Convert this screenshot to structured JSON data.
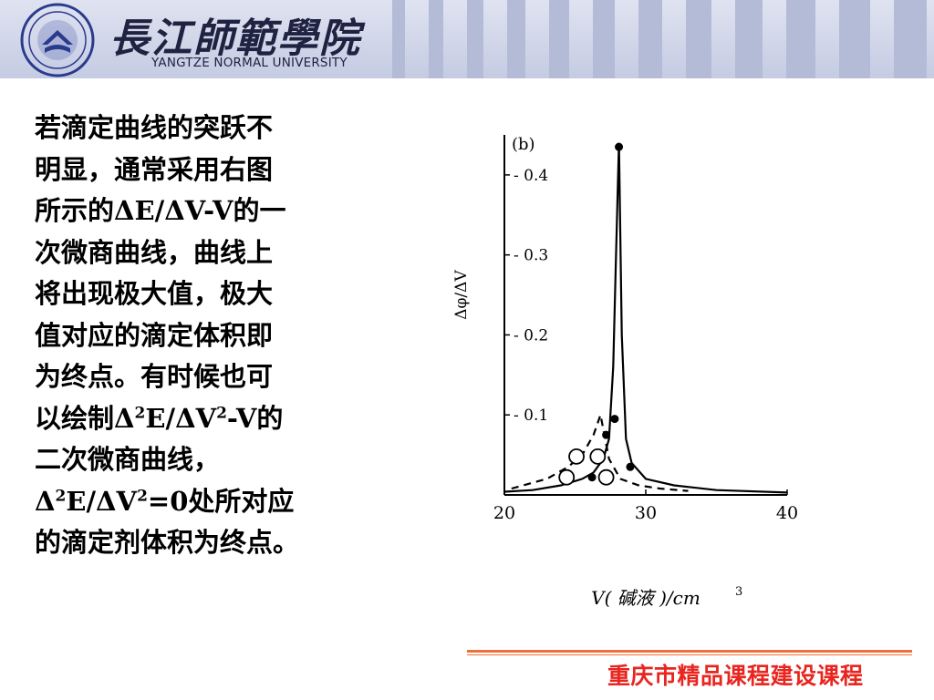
{
  "header": {
    "school_name_cn": "長江師範學院",
    "school_name_en": "YANGTZE NORMAL UNIVERSITY"
  },
  "body": {
    "lines": [
      "若滴定曲线的突跃不",
      "明显，通常采用右图",
      "所示的",
      "次微商曲线，曲线上",
      "将出现极大值，极大",
      "值对应的滴定体积即",
      "为终点。有时候也可",
      "以绘制",
      "二次微商曲线，",
      "",
      "的滴定剂体积为终点。"
    ],
    "line3_formula": "ΔE/ΔV-V",
    "line3_suffix": "的一",
    "line8_formula_a": "Δ",
    "line8_formula_b": "E/ΔV",
    "line8_formula_c": "-V",
    "line8_suffix": "的",
    "line10_formula_a": "Δ",
    "line10_formula_b": "E/ΔV",
    "line10_formula_c": "=0",
    "line10_suffix": "处所对应",
    "sup2": "2"
  },
  "chart_data": {
    "type": "line",
    "panel_label": "(b)",
    "xlabel": "V( 碱液 )/cm",
    "xlabel_sup": "3",
    "ylabel": "Δφ/ΔV",
    "xlim": [
      20,
      40
    ],
    "ylim": [
      0,
      0.45
    ],
    "x_ticks": [
      20,
      30,
      40
    ],
    "x_tick_labels": [
      "20",
      "30",
      "40"
    ],
    "y_ticks": [
      0.1,
      0.2,
      0.3,
      0.4
    ],
    "y_tick_labels": [
      "0.1",
      "0.2",
      "0.3",
      "0.4"
    ],
    "series": [
      {
        "style": "solid",
        "marker": "filled-circle",
        "x": [
          20,
          22,
          24,
          25.5,
          26.3,
          27,
          27.4,
          27.7,
          27.9,
          28.1,
          28.3,
          28.6,
          29,
          30,
          32,
          35,
          40
        ],
        "y": [
          0.004,
          0.006,
          0.012,
          0.02,
          0.028,
          0.045,
          0.07,
          0.16,
          0.3,
          0.44,
          0.2,
          0.07,
          0.04,
          0.02,
          0.012,
          0.006,
          0.003
        ]
      },
      {
        "style": "dashed",
        "marker": "open-circle",
        "x": [
          20.5,
          23,
          24.5,
          25.5,
          26.3,
          26.8,
          27.4,
          28.2,
          29.5,
          31,
          33
        ],
        "y": [
          0.008,
          0.02,
          0.035,
          0.05,
          0.075,
          0.1,
          0.045,
          0.02,
          0.012,
          0.008,
          0.005
        ]
      }
    ],
    "markers_filled": [
      [
        26.2,
        0.022
      ],
      [
        27.2,
        0.075
      ],
      [
        27.8,
        0.095
      ],
      [
        28.1,
        0.435
      ],
      [
        28.9,
        0.035
      ]
    ],
    "markers_open": [
      [
        24.4,
        0.022
      ],
      [
        25.1,
        0.048
      ],
      [
        26.6,
        0.048
      ],
      [
        27.2,
        0.022
      ]
    ]
  },
  "footer": {
    "text": "重庆市精品课程建设课程"
  },
  "colors": {
    "header_bg": "#c5cbe2",
    "footer_text": "#e8251f",
    "footer_line": "#f0703c"
  }
}
